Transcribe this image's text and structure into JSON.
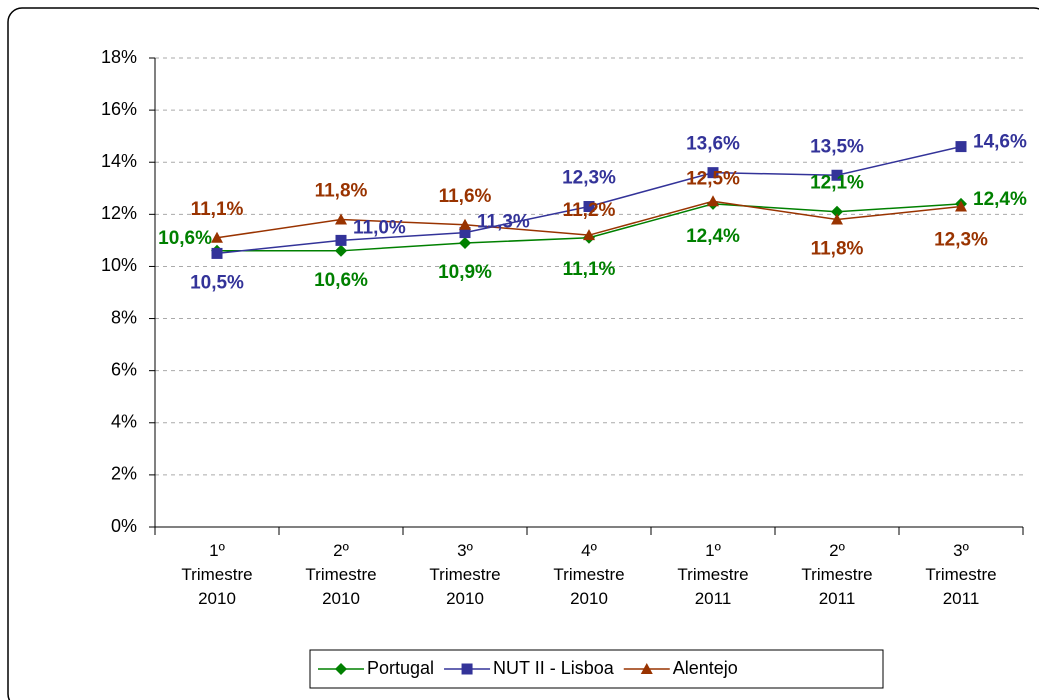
{
  "chart_data": {
    "type": "line",
    "categories": [
      "1º Trimestre 2010",
      "2º Trimestre 2010",
      "3º Trimestre 2010",
      "4º Trimestre 2010",
      "1º Trimestre 2011",
      "2º Trimestre 2011",
      "3º Trimestre 2011"
    ],
    "series": [
      {
        "name": "Portugal",
        "color": "#008000",
        "marker": "diamond",
        "values": [
          10.6,
          10.6,
          10.9,
          11.1,
          12.4,
          12.1,
          12.4
        ],
        "value_labels": [
          "10,6%",
          "10,6%",
          "10,9%",
          "11,1%",
          "12,4%",
          "12,1%",
          "12,4%"
        ]
      },
      {
        "name": "NUT II - Lisboa",
        "color": "#333399",
        "marker": "square",
        "values": [
          10.5,
          11.0,
          11.3,
          12.3,
          13.6,
          13.5,
          14.6
        ],
        "value_labels": [
          "10,5%",
          "11,0%",
          "11,3%",
          "12,3%",
          "13,6%",
          "13,5%",
          "14,6%"
        ]
      },
      {
        "name": "Alentejo",
        "color": "#993300",
        "marker": "triangle",
        "values": [
          11.1,
          11.8,
          11.6,
          11.2,
          12.5,
          11.8,
          12.3
        ],
        "value_labels": [
          "11,1%",
          "11,8%",
          "11,6%",
          "11,2%",
          "12,5%",
          "11,8%",
          "12,3%"
        ]
      }
    ],
    "ylim": [
      0,
      18
    ],
    "yticks": [
      {
        "value": 0,
        "label": "0%"
      },
      {
        "value": 2,
        "label": "2%"
      },
      {
        "value": 4,
        "label": "4%"
      },
      {
        "value": 6,
        "label": "6%"
      },
      {
        "value": 8,
        "label": "8%"
      },
      {
        "value": 10,
        "label": "10%"
      },
      {
        "value": 12,
        "label": "12%"
      },
      {
        "value": 14,
        "label": "14%"
      },
      {
        "value": 16,
        "label": "16%"
      },
      {
        "value": 18,
        "label": "18%"
      }
    ],
    "grid": true,
    "legend": "bottom"
  }
}
